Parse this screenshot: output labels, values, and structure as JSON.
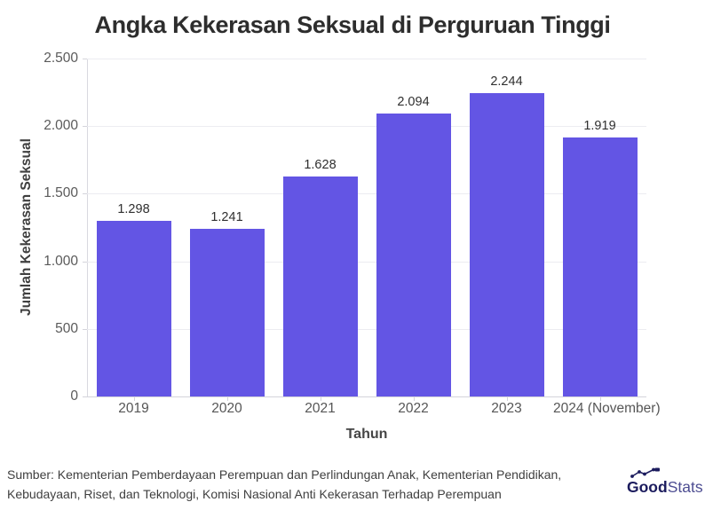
{
  "chart_data": {
    "type": "bar",
    "title": "Angka Kekerasan Seksual di Perguruan Tinggi",
    "categories": [
      "2019",
      "2020",
      "2021",
      "2022",
      "2023",
      "2024 (November)"
    ],
    "values": [
      1298,
      1241,
      1628,
      2094,
      2244,
      1919
    ],
    "value_labels": [
      "1.298",
      "1.241",
      "1.628",
      "2.094",
      "2.244",
      "1.919"
    ],
    "xlabel": "Tahun",
    "ylabel": "Jumlah Kekerasan Seksual",
    "ylim": [
      0,
      2500
    ],
    "ytick_labels": [
      "0",
      "500",
      "1.000",
      "1.500",
      "2.000",
      "2.500"
    ],
    "grid": true,
    "legend": "none",
    "bar_color": "#6355e4"
  },
  "footer": {
    "source_lines": [
      "Sumber: Kementerian Pemberdayaan Perempuan dan Perlindungan Anak, Kementerian Pendidikan,",
      "Kebudayaan, Riset, dan Teknologi, Komisi Nasional Anti Kekerasan Terhadap Perempuan"
    ]
  },
  "logo": {
    "name": "GoodStats",
    "part_bold": "Good",
    "part_light": "Stats",
    "color_bold": "#1c1c5e",
    "color_light": "#4c4c91"
  },
  "colors": {
    "background": "#ffffff",
    "bar": "#6355e4",
    "title_text": "#2d2d2d",
    "tick_text": "#5a5a5a",
    "gridline": "#ececf1",
    "axis_line": "#d4d4db"
  }
}
